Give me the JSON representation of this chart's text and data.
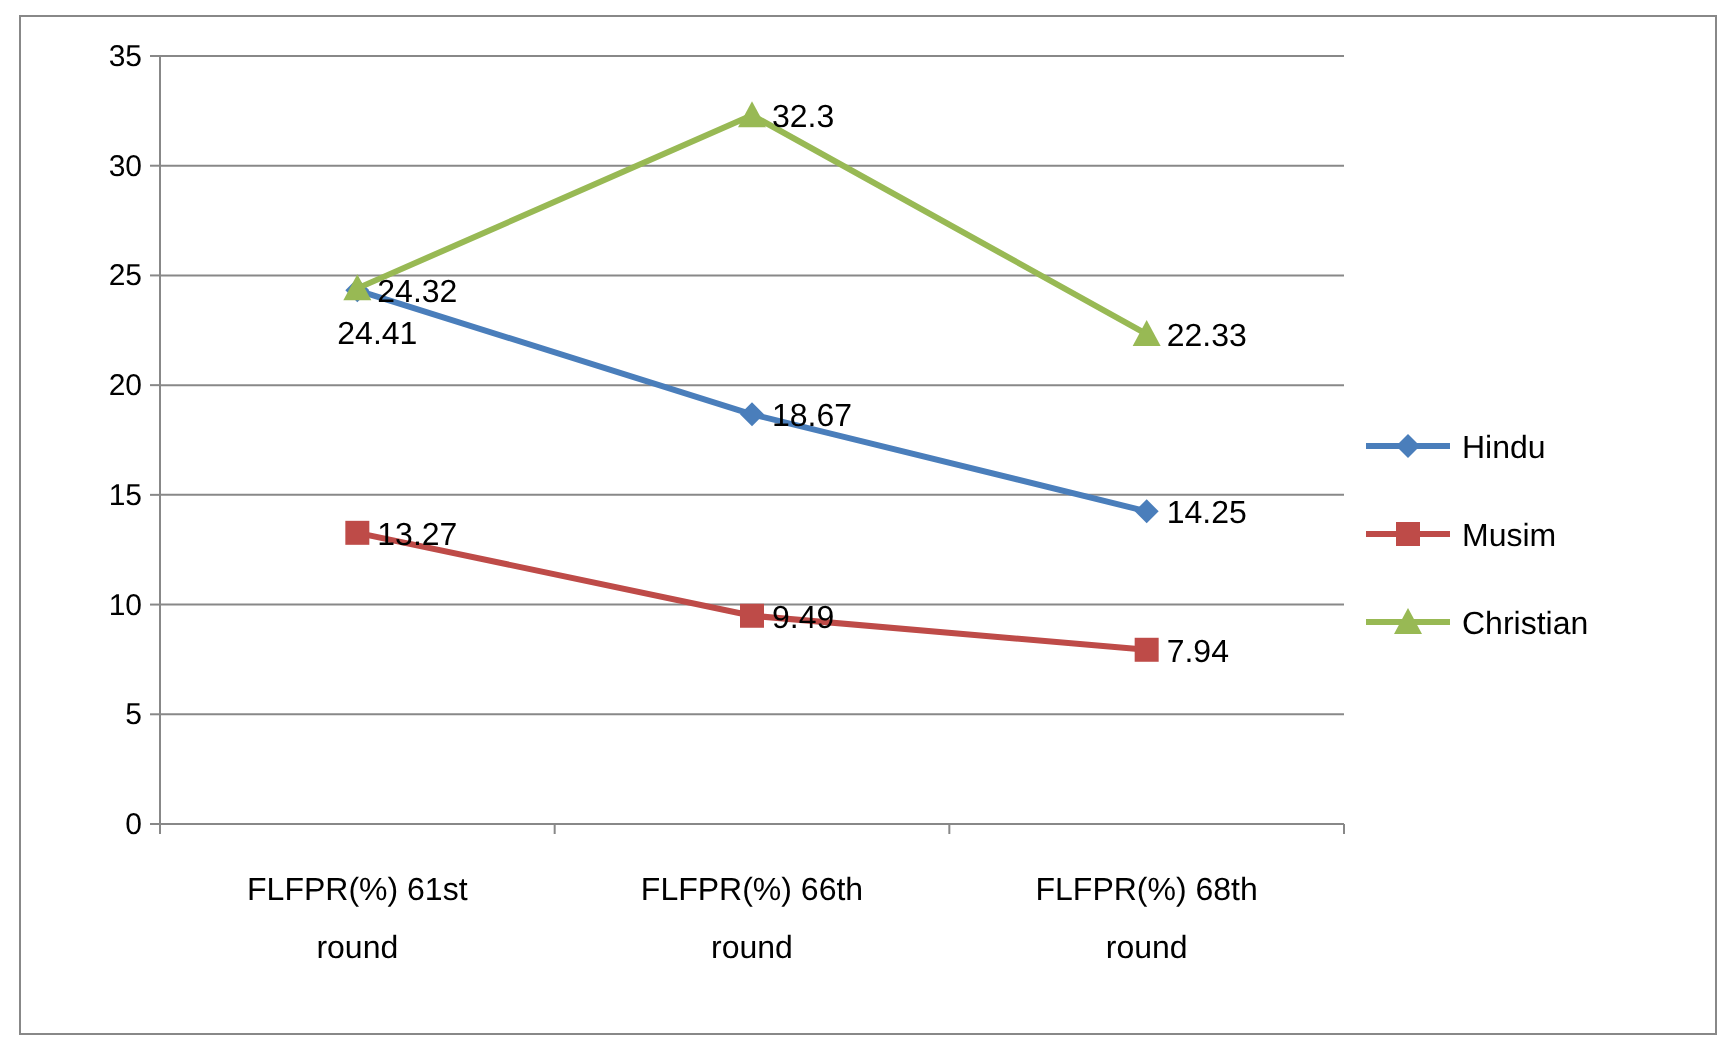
{
  "chart_data": {
    "type": "line",
    "categories": [
      "FLFPR(%) 61st round",
      "FLFPR(%) 66th round",
      "FLFPR(%) 68th round"
    ],
    "series": [
      {
        "name": "Hindu",
        "color": "#4a7ebb",
        "marker": "diamond",
        "values": [
          24.32,
          18.67,
          14.25
        ]
      },
      {
        "name": "Musim",
        "color": "#be4b48",
        "marker": "square",
        "values": [
          13.27,
          9.49,
          7.94
        ]
      },
      {
        "name": "Christian",
        "color": "#98b954",
        "marker": "triangle",
        "values": [
          24.41,
          32.3,
          22.33
        ]
      }
    ],
    "ylim": [
      0,
      35
    ],
    "yticks": [
      0,
      5,
      10,
      15,
      20,
      25,
      30,
      35
    ],
    "grid": "y",
    "legend": "right",
    "data_labels": true
  }
}
